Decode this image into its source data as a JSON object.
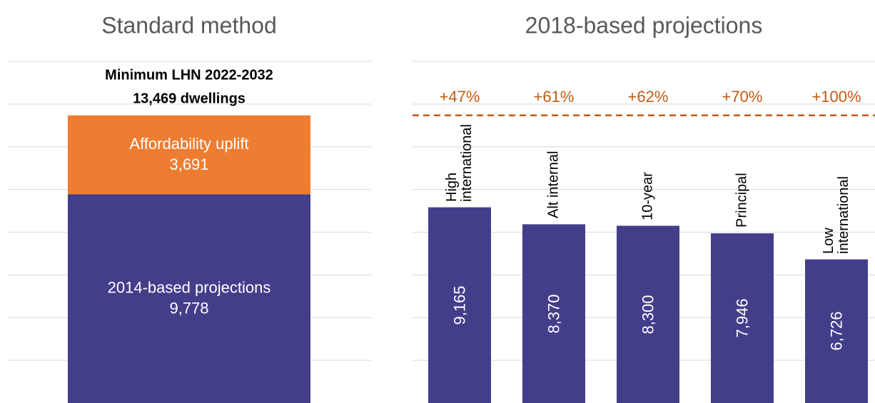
{
  "chart_data": [
    {
      "type": "stacked_bar",
      "title": "Standard method",
      "annotations": [
        "Minimum LHN 2022-2032",
        "13,469 dwellings"
      ],
      "series": [
        {
          "name": "2014-based projections",
          "color": "#433e8a",
          "values": [
            9778
          ],
          "value_labels": [
            "9,778"
          ]
        },
        {
          "name": "Affordability uplift",
          "color": "#ed7d31",
          "values": [
            3691
          ],
          "value_labels": [
            "3,691"
          ]
        }
      ],
      "ylim": [
        0,
        16000
      ],
      "yticks": [
        2000,
        4000,
        6000,
        8000,
        10000,
        12000,
        14000,
        16000
      ],
      "grid": true
    },
    {
      "type": "bar",
      "title": "2018-based projections",
      "categories": [
        "High international",
        "Alt internal",
        "10-year",
        "Principal",
        "Low international"
      ],
      "values": [
        9165,
        8370,
        8300,
        7946,
        6726
      ],
      "value_labels": [
        "9,165",
        "8,370",
        "8,300",
        "7,946",
        "6,726"
      ],
      "annotations": [
        "+47%",
        "+61%",
        "+62%",
        "+70%",
        "+100%"
      ],
      "color": "#433e8a",
      "reference_line": {
        "value": 13469,
        "color": "#c55a11"
      },
      "ylim": [
        0,
        16000
      ],
      "yticks": [
        2000,
        4000,
        6000,
        8000,
        10000,
        12000,
        14000,
        16000
      ],
      "grid": true
    }
  ]
}
